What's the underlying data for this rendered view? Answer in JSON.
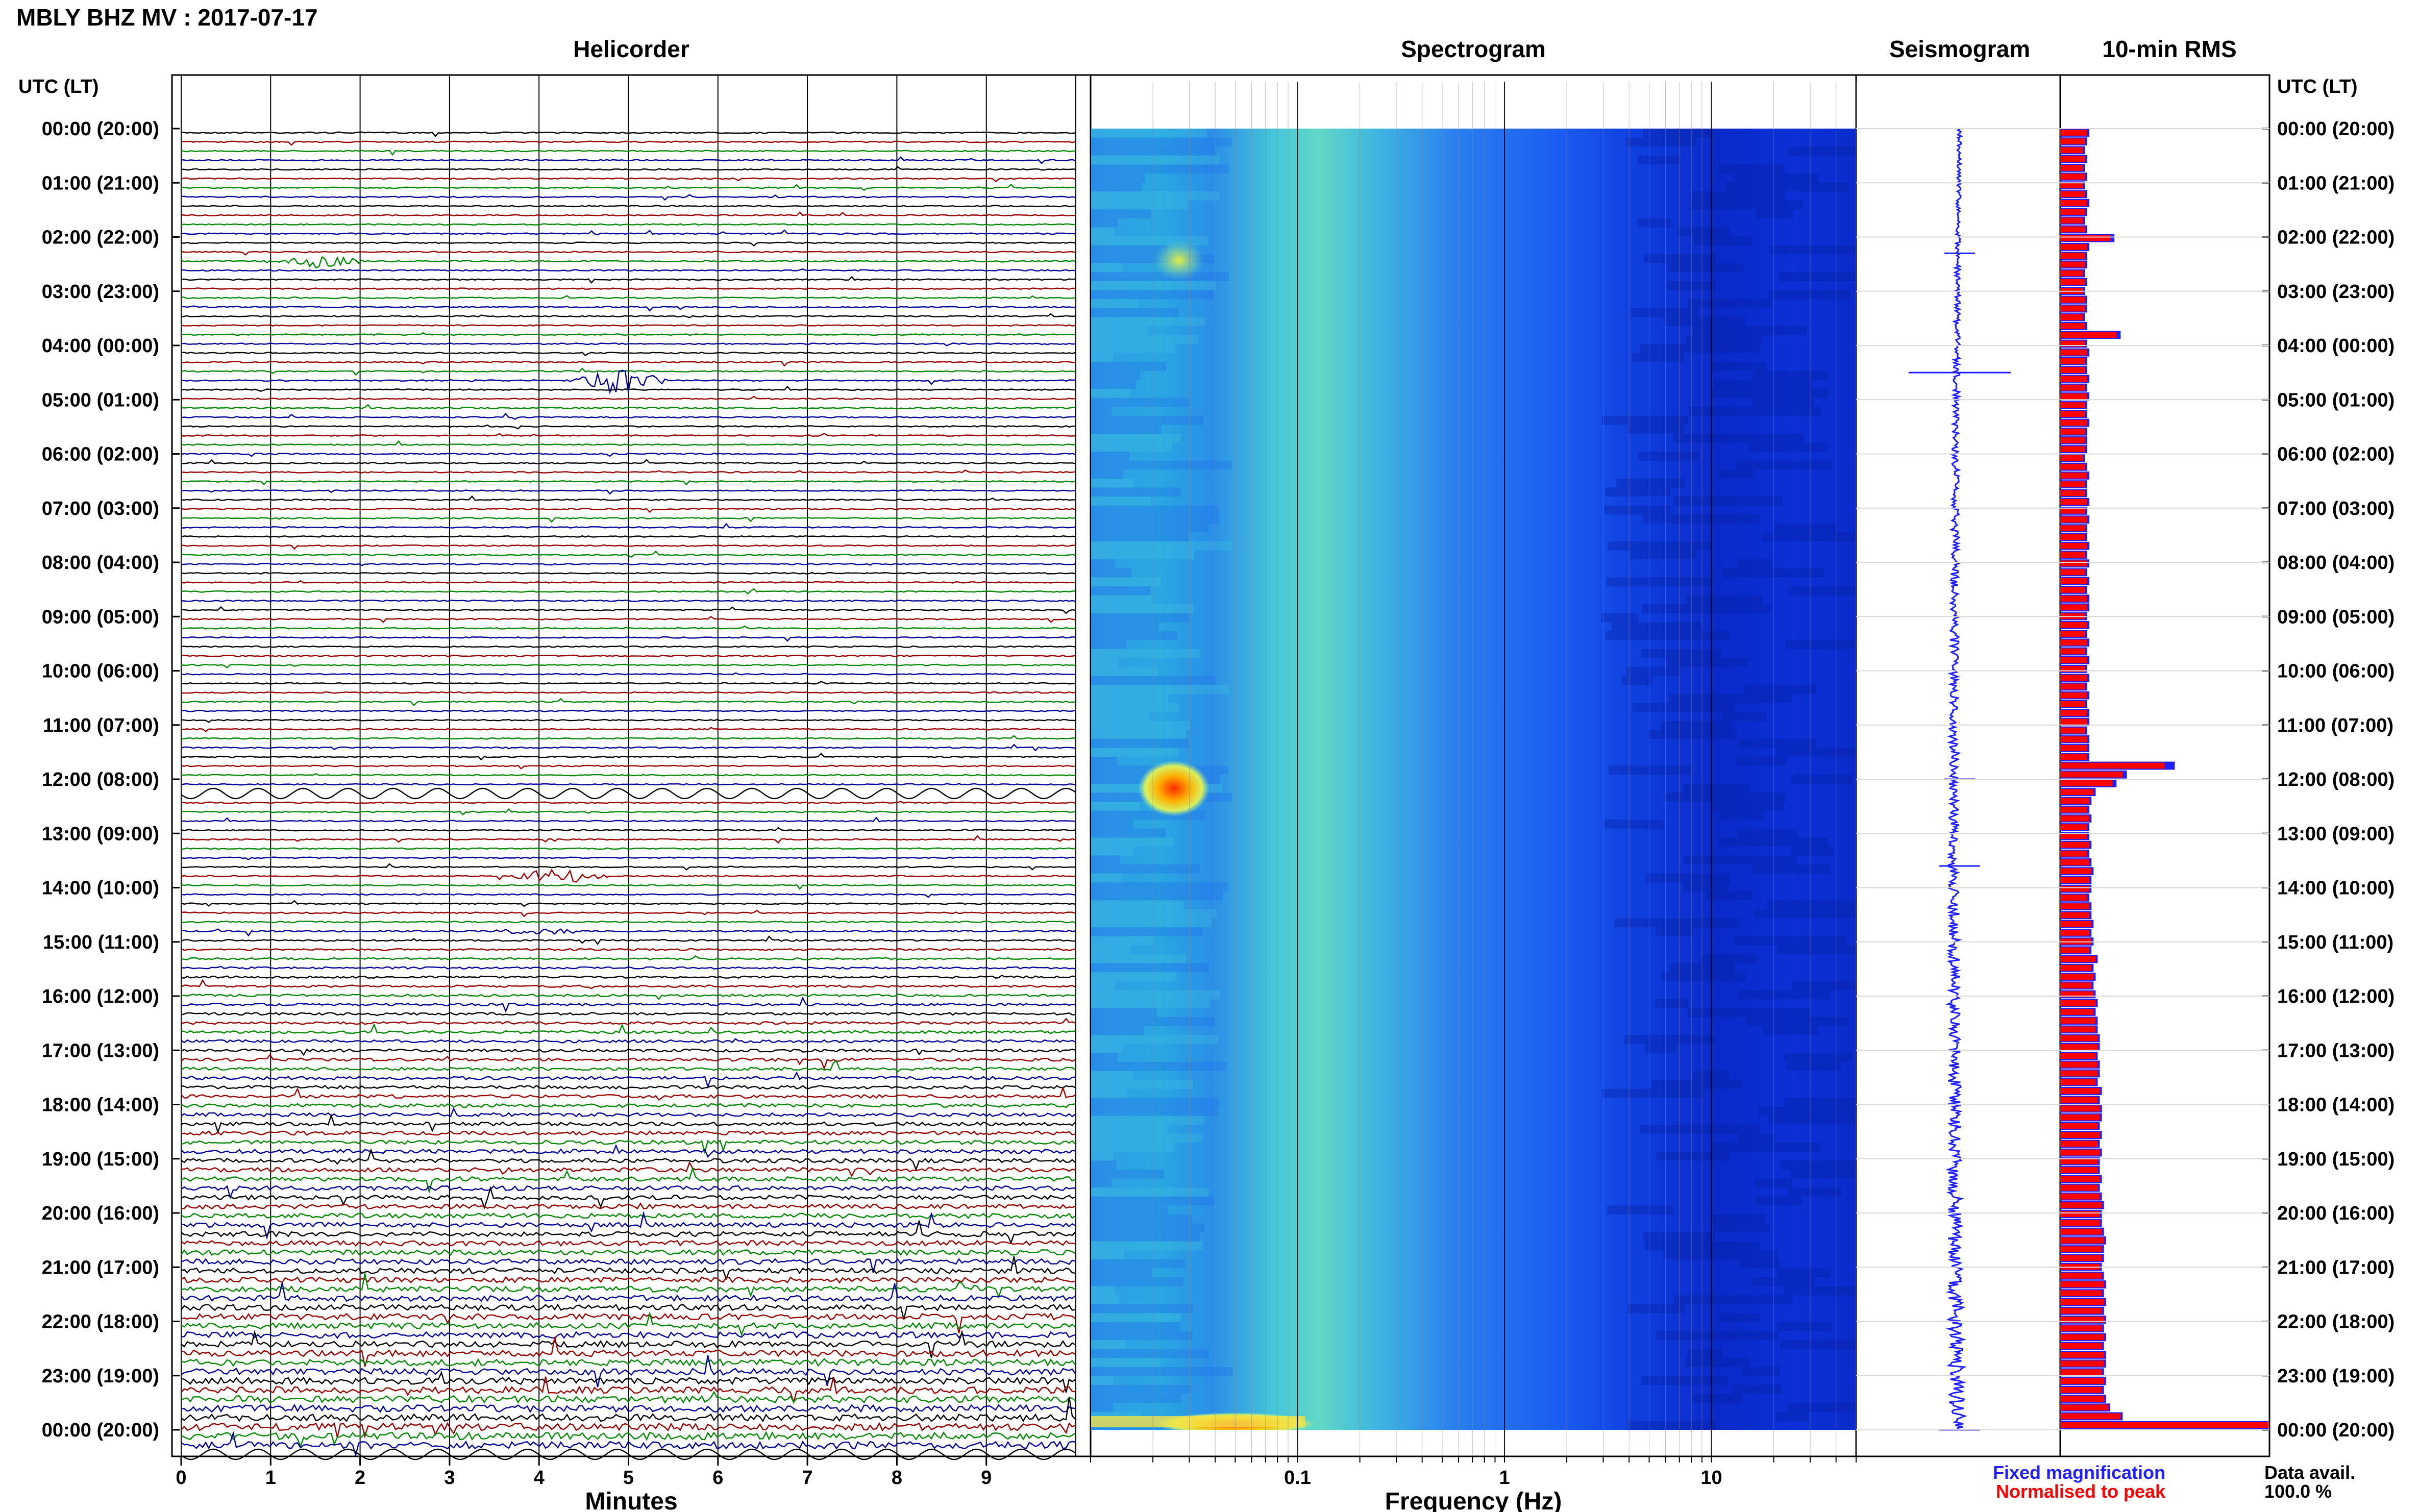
{
  "header": {
    "station_title": "MBLY BHZ MV : 2017-07-17"
  },
  "panels": {
    "helicorder_title": "Helicorder",
    "spectrogram_title": "Spectrogram",
    "seismogram_title": "Seismogram",
    "rms_title": "10-min RMS"
  },
  "axes": {
    "time_axis_label": "UTC (LT)",
    "minutes_label": "Minutes",
    "frequency_label": "Frequency (Hz)"
  },
  "legend": {
    "fixed_label": "Fixed magnification",
    "fixed_color": "#1f1fff",
    "normalised_label": "Normalised to peak",
    "normalised_color": "#ff0000",
    "data_avail_label": "Data avail.",
    "data_avail_value": "100.0 %"
  },
  "chart_data": {
    "type": "heatmap",
    "time_ticks": [
      "00:00 (20:00)",
      "01:00 (21:00)",
      "02:00 (22:00)",
      "03:00 (23:00)",
      "04:00 (00:00)",
      "05:00 (01:00)",
      "06:00 (02:00)",
      "07:00 (03:00)",
      "08:00 (04:00)",
      "09:00 (05:00)",
      "10:00 (06:00)",
      "11:00 (07:00)",
      "12:00 (08:00)",
      "13:00 (09:00)",
      "14:00 (10:00)",
      "15:00 (11:00)",
      "16:00 (12:00)",
      "17:00 (13:00)",
      "18:00 (14:00)",
      "19:00 (15:00)",
      "20:00 (16:00)",
      "21:00 (17:00)",
      "22:00 (18:00)",
      "23:00 (19:00)",
      "00:00 (20:00)"
    ],
    "minute_ticks": [
      "0",
      "1",
      "2",
      "3",
      "4",
      "5",
      "6",
      "7",
      "8",
      "9"
    ],
    "frequency_ticks": [
      "0.1",
      "1",
      "10"
    ],
    "frequency_range_hz": [
      0.01,
      50
    ],
    "trace_colors": [
      "#000000",
      "#990000",
      "#008800",
      "#000099"
    ],
    "events": [
      {
        "utc_hour": 2.3,
        "minute": 1.5,
        "amplitude": 0.5
      },
      {
        "utc_hour": 4.5,
        "minute": 4.9,
        "amplitude": 1.0
      },
      {
        "utc_hour": 12.0,
        "minute": 0,
        "amplitude": 0.6
      },
      {
        "utc_hour": 13.5,
        "minute": 4.2,
        "amplitude": 0.6
      },
      {
        "utc_hour": 14.5,
        "minute": 4.0,
        "amplitude": 0.3
      }
    ],
    "rms_fixed": [
      0.14,
      0.13,
      0.12,
      0.13,
      0.12,
      0.13,
      0.12,
      0.13,
      0.14,
      0.13,
      0.12,
      0.13,
      0.26,
      0.14,
      0.13,
      0.13,
      0.12,
      0.13,
      0.12,
      0.13,
      0.13,
      0.12,
      0.13,
      0.29,
      0.13,
      0.14,
      0.13,
      0.13,
      0.14,
      0.13,
      0.14,
      0.13,
      0.13,
      0.14,
      0.13,
      0.13,
      0.13,
      0.12,
      0.13,
      0.14,
      0.13,
      0.13,
      0.14,
      0.13,
      0.14,
      0.13,
      0.13,
      0.14,
      0.13,
      0.14,
      0.13,
      0.14,
      0.13,
      0.14,
      0.14,
      0.13,
      0.14,
      0.13,
      0.14,
      0.13,
      0.14,
      0.13,
      0.14,
      0.13,
      0.14,
      0.13,
      0.14,
      0.14,
      0.13,
      0.14,
      0.14,
      0.14,
      0.55,
      0.32,
      0.27,
      0.17,
      0.15,
      0.14,
      0.15,
      0.14,
      0.14,
      0.15,
      0.14,
      0.15,
      0.16,
      0.15,
      0.15,
      0.14,
      0.15,
      0.15,
      0.16,
      0.15,
      0.16,
      0.15,
      0.18,
      0.16,
      0.17,
      0.16,
      0.17,
      0.18,
      0.17,
      0.18,
      0.18,
      0.19,
      0.19,
      0.18,
      0.19,
      0.19,
      0.18,
      0.2,
      0.19,
      0.2,
      0.2,
      0.19,
      0.2,
      0.19,
      0.2,
      0.19,
      0.19,
      0.2,
      0.19,
      0.2,
      0.21,
      0.2,
      0.2,
      0.21,
      0.22,
      0.21,
      0.21,
      0.2,
      0.21,
      0.22,
      0.21,
      0.22,
      0.21,
      0.22,
      0.21,
      0.22,
      0.21,
      0.22,
      0.22,
      0.21,
      0.22,
      0.21,
      0.22,
      0.24,
      0.3,
      1.0
    ],
    "rms_normalised": [
      0.13,
      0.12,
      0.11,
      0.12,
      0.11,
      0.12,
      0.11,
      0.12,
      0.13,
      0.12,
      0.11,
      0.12,
      0.24,
      0.13,
      0.12,
      0.12,
      0.11,
      0.12,
      0.11,
      0.12,
      0.12,
      0.11,
      0.12,
      0.27,
      0.12,
      0.13,
      0.12,
      0.12,
      0.13,
      0.12,
      0.13,
      0.12,
      0.12,
      0.13,
      0.12,
      0.12,
      0.12,
      0.11,
      0.12,
      0.13,
      0.12,
      0.12,
      0.13,
      0.12,
      0.13,
      0.12,
      0.12,
      0.13,
      0.12,
      0.13,
      0.12,
      0.13,
      0.12,
      0.13,
      0.13,
      0.12,
      0.13,
      0.12,
      0.13,
      0.12,
      0.13,
      0.12,
      0.13,
      0.12,
      0.13,
      0.12,
      0.13,
      0.13,
      0.12,
      0.13,
      0.13,
      0.13,
      0.5,
      0.3,
      0.25,
      0.16,
      0.14,
      0.13,
      0.14,
      0.13,
      0.13,
      0.14,
      0.13,
      0.14,
      0.15,
      0.14,
      0.14,
      0.13,
      0.14,
      0.14,
      0.15,
      0.14,
      0.15,
      0.14,
      0.17,
      0.15,
      0.16,
      0.15,
      0.16,
      0.17,
      0.16,
      0.17,
      0.17,
      0.18,
      0.18,
      0.17,
      0.18,
      0.18,
      0.17,
      0.19,
      0.18,
      0.19,
      0.19,
      0.18,
      0.19,
      0.18,
      0.19,
      0.18,
      0.18,
      0.19,
      0.18,
      0.19,
      0.2,
      0.19,
      0.19,
      0.2,
      0.21,
      0.2,
      0.2,
      0.19,
      0.2,
      0.21,
      0.2,
      0.21,
      0.2,
      0.21,
      0.2,
      0.21,
      0.2,
      0.21,
      0.21,
      0.2,
      0.21,
      0.2,
      0.21,
      0.23,
      0.29,
      1.0
    ]
  }
}
